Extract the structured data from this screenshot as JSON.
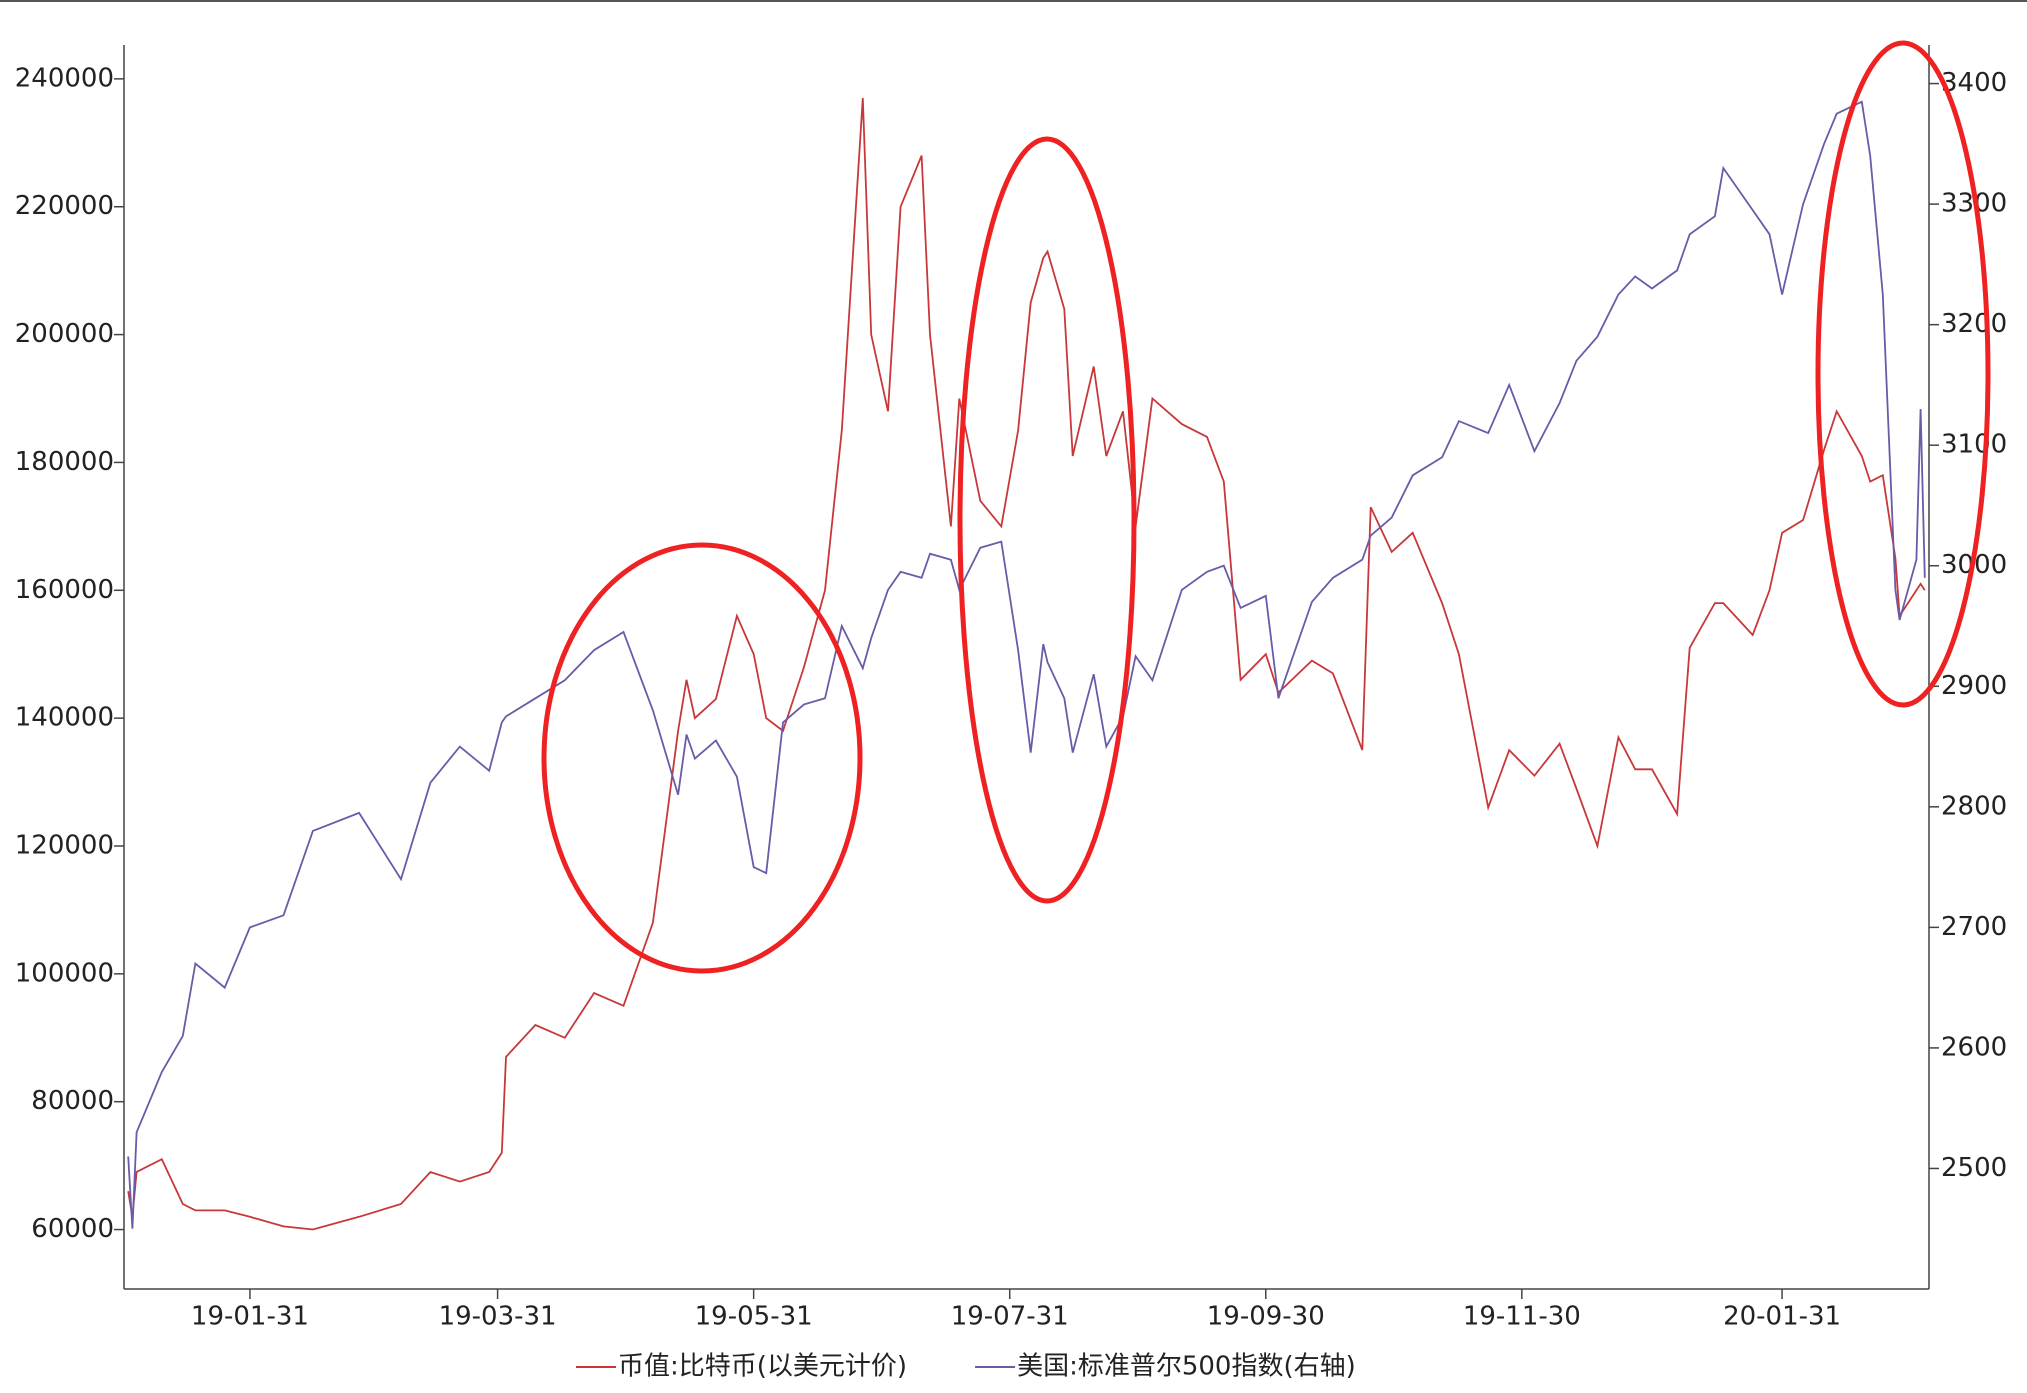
{
  "chart_data": {
    "type": "line",
    "x": [
      "19-01-02",
      "19-01-03",
      "19-01-04",
      "19-01-10",
      "19-01-15",
      "19-01-18",
      "19-01-25",
      "19-01-31",
      "19-02-08",
      "19-02-15",
      "19-02-26",
      "19-03-08",
      "19-03-15",
      "19-03-22",
      "19-03-29",
      "19-04-01",
      "19-04-02",
      "19-04-09",
      "19-04-16",
      "19-04-23",
      "19-04-30",
      "19-05-07",
      "19-05-13",
      "19-05-15",
      "19-05-17",
      "19-05-22",
      "19-05-27",
      "19-05-31",
      "19-06-03",
      "19-06-07",
      "19-06-12",
      "19-06-17",
      "19-06-21",
      "19-06-26",
      "19-06-28",
      "19-07-02",
      "19-07-05",
      "19-07-10",
      "19-07-12",
      "19-07-17",
      "19-07-19",
      "19-07-24",
      "19-07-29",
      "19-08-02",
      "19-08-05",
      "19-08-08",
      "19-08-09",
      "19-08-13",
      "19-08-15",
      "19-08-20",
      "19-08-23",
      "19-08-27",
      "19-08-30",
      "19-09-03",
      "19-09-10",
      "19-09-16",
      "19-09-20",
      "19-09-24",
      "19-09-30",
      "19-10-03",
      "19-10-11",
      "19-10-16",
      "19-10-23",
      "19-10-25",
      "19-10-30",
      "19-11-04",
      "19-11-11",
      "19-11-15",
      "19-11-22",
      "19-11-27",
      "19-12-03",
      "19-12-09",
      "19-12-13",
      "19-12-18",
      "19-12-23",
      "19-12-27",
      "19-12-31",
      "20-01-06",
      "20-01-09",
      "20-01-15",
      "20-01-17",
      "20-01-24",
      "20-01-28",
      "20-01-31",
      "20-02-05",
      "20-02-10",
      "20-02-13",
      "20-02-19",
      "20-02-21",
      "20-02-24",
      "20-02-27",
      "20-02-28",
      "20-03-03",
      "20-03-04",
      "20-03-05"
    ],
    "series": [
      {
        "name": "币值:比特币(以美元计价)",
        "color": "#c8383a",
        "values": [
          66000,
          62000,
          69000,
          71000,
          64000,
          63000,
          63000,
          62000,
          60500,
          60000,
          62000,
          64000,
          69000,
          67500,
          69000,
          72000,
          87000,
          92000,
          90000,
          97000,
          95000,
          108000,
          138000,
          146000,
          140000,
          143000,
          156000,
          150000,
          140000,
          138000,
          148000,
          160000,
          185000,
          237000,
          200000,
          188000,
          220000,
          228000,
          200000,
          170000,
          190000,
          174000,
          170000,
          185000,
          205000,
          212000,
          213000,
          204000,
          181000,
          195000,
          181000,
          188000,
          170000,
          190000,
          186000,
          184000,
          177000,
          146000,
          150000,
          144000,
          149000,
          147000,
          135000,
          173000,
          166000,
          169000,
          158000,
          150000,
          126000,
          135000,
          131000,
          136000,
          129000,
          120000,
          137000,
          132000,
          132000,
          125000,
          151000,
          158000,
          158000,
          153000,
          160000,
          169000,
          171000,
          182000,
          188000,
          181000,
          177000,
          178000,
          165000,
          156000,
          160000,
          161000,
          160000
        ]
      },
      {
        "name": "美国:标准普尔500指数(右轴)",
        "color": "#6a5aa8",
        "axis": "y2",
        "values": [
          2510,
          2450,
          2530,
          2580,
          2610,
          2670,
          2650,
          2700,
          2710,
          2780,
          2795,
          2740,
          2820,
          2850,
          2830,
          2870,
          2875,
          2890,
          2905,
          2930,
          2945,
          2880,
          2810,
          2860,
          2840,
          2855,
          2825,
          2750,
          2745,
          2870,
          2885,
          2890,
          2950,
          2915,
          2940,
          2980,
          2995,
          2990,
          3010,
          3005,
          2980,
          3015,
          3020,
          2930,
          2845,
          2935,
          2920,
          2890,
          2845,
          2910,
          2850,
          2875,
          2925,
          2905,
          2980,
          2995,
          3000,
          2965,
          2975,
          2890,
          2970,
          2990,
          3005,
          3025,
          3040,
          3075,
          3090,
          3120,
          3110,
          3150,
          3095,
          3135,
          3170,
          3190,
          3225,
          3240,
          3230,
          3245,
          3275,
          3290,
          3330,
          3295,
          3275,
          3225,
          3300,
          3350,
          3375,
          3385,
          3340,
          3225,
          2980,
          2955,
          3005,
          3130,
          2990
        ]
      }
    ],
    "xlim": [
      "19-01-01",
      "20-03-06"
    ],
    "xticks": [
      "19-01-31",
      "19-03-31",
      "19-05-31",
      "19-07-31",
      "19-09-30",
      "19-11-30",
      "20-01-31"
    ],
    "ylim": [
      50700,
      245300
    ],
    "yticks": [
      60000,
      80000,
      100000,
      120000,
      140000,
      160000,
      180000,
      200000,
      220000,
      240000
    ],
    "y2lim": [
      2400,
      3432
    ],
    "y2ticks": [
      2500,
      2600,
      2700,
      2800,
      2900,
      3000,
      3100,
      3200,
      3300,
      3400
    ],
    "grid": false,
    "legend": "bottom"
  }
}
